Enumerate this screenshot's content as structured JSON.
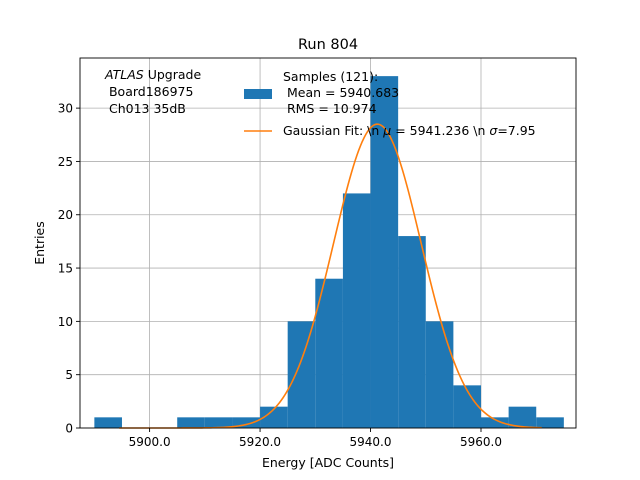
{
  "chart_data": {
    "type": "bar",
    "title": "Run 804",
    "xlabel": "Energy [ADC Counts]",
    "ylabel": "Entries",
    "xlim": [
      5887.4,
      5977.2
    ],
    "ylim": [
      0,
      34.7
    ],
    "xticks": [
      5900,
      5920,
      5940,
      5960
    ],
    "xtick_labels": [
      "5900.0",
      "5920.0",
      "5940.0",
      "5960.0"
    ],
    "yticks": [
      0,
      5,
      10,
      15,
      20,
      25,
      30
    ],
    "yticks_labels": [
      "0",
      "5",
      "10",
      "15",
      "20",
      "25",
      "30"
    ],
    "grid": true,
    "bin_edges": [
      5890.0,
      5895.0,
      5900.0,
      5905.0,
      5910.0,
      5915.0,
      5920.0,
      5925.0,
      5930.0,
      5935.0,
      5940.0,
      5945.0,
      5950.0,
      5955.0,
      5960.0,
      5965.0,
      5970.0,
      5975.0
    ],
    "counts": [
      1,
      0,
      0,
      1,
      1,
      1,
      2,
      10,
      14,
      22,
      33,
      18,
      10,
      4,
      1,
      2,
      1
    ],
    "bar_color": "#1f77b4",
    "fit": {
      "mu": 5941.236,
      "sigma": 7.95,
      "amplitude": 28.5,
      "x_range": [
        5894.5,
        5971.0
      ],
      "color": "#ff7f0e"
    },
    "info_text": {
      "line1_italic": "ATLAS",
      "line1_rest": " Upgrade",
      "line2": " Board186975",
      "line3": " Ch013 35dB"
    },
    "legend": {
      "position": "top-right",
      "samples": [
        "Samples (121):",
        " Mean = 5940.683",
        " RMS = 10.974"
      ],
      "fit_label_prefix": "Gaussian Fit: \\n ",
      "fit_mu_symbol": "μ",
      "fit_mu_text": " = 5941.236 \\n ",
      "fit_sigma_symbol": "σ",
      "fit_sigma_text": "=7.95"
    }
  }
}
